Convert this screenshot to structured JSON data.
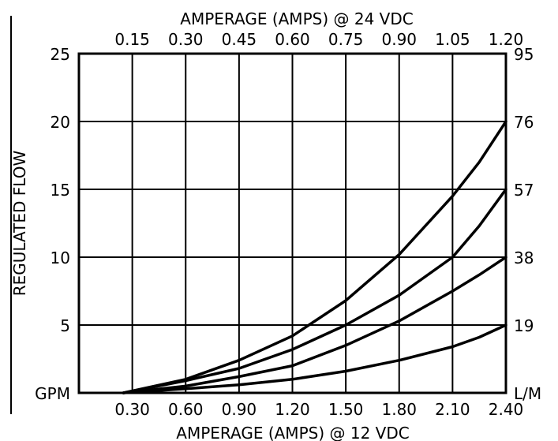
{
  "colors": {
    "ink": "#000000",
    "background": "#ffffff"
  },
  "chart_data": {
    "type": "line",
    "title": "",
    "top_axis_label": "AMPERAGE (AMPS) @ 24 VDC",
    "top_tick_labels": [
      "0.15",
      "0.30",
      "0.45",
      "0.60",
      "0.75",
      "0.90",
      "1.05",
      "1.20"
    ],
    "xlabel": "AMPERAGE (AMPS) @ 12 VDC",
    "x_tick_labels": [
      "0.30",
      "0.60",
      "0.90",
      "1.20",
      "1.50",
      "1.80",
      "2.10",
      "2.40"
    ],
    "x_ticks": [
      0.3,
      0.6,
      0.9,
      1.2,
      1.5,
      1.8,
      2.1,
      2.4
    ],
    "xlim": [
      0.0,
      2.4
    ],
    "ylabel": "REGULATED FLOW",
    "ylim": [
      0,
      25
    ],
    "y_ticks": [
      0,
      5,
      10,
      15,
      20,
      25
    ],
    "y_tick_labels": [
      "GPM",
      "5",
      "10",
      "15",
      "20",
      "25"
    ],
    "right_tick_labels": [
      "L/M",
      "19",
      "38",
      "57",
      "76",
      "95"
    ],
    "grid": true,
    "series": [
      {
        "x": [
          0.25,
          0.6,
          0.9,
          1.2,
          1.5,
          1.8,
          2.1,
          2.25,
          2.4
        ],
        "y": [
          0.0,
          1.0,
          2.4,
          4.2,
          6.8,
          10.2,
          14.5,
          17.0,
          20.0
        ]
      },
      {
        "x": [
          0.25,
          0.6,
          0.9,
          1.2,
          1.5,
          1.8,
          2.1,
          2.25,
          2.4
        ],
        "y": [
          0.0,
          0.9,
          1.8,
          3.2,
          5.0,
          7.2,
          10.0,
          12.3,
          15.0
        ]
      },
      {
        "x": [
          0.25,
          0.6,
          0.9,
          1.2,
          1.5,
          1.8,
          2.1,
          2.25,
          2.4
        ],
        "y": [
          0.0,
          0.5,
          1.2,
          2.0,
          3.5,
          5.3,
          7.5,
          8.7,
          10.0
        ]
      },
      {
        "x": [
          0.25,
          0.6,
          0.9,
          1.2,
          1.5,
          1.8,
          2.1,
          2.25,
          2.4
        ],
        "y": [
          0.0,
          0.3,
          0.6,
          1.0,
          1.6,
          2.4,
          3.4,
          4.1,
          5.0
        ]
      }
    ]
  }
}
